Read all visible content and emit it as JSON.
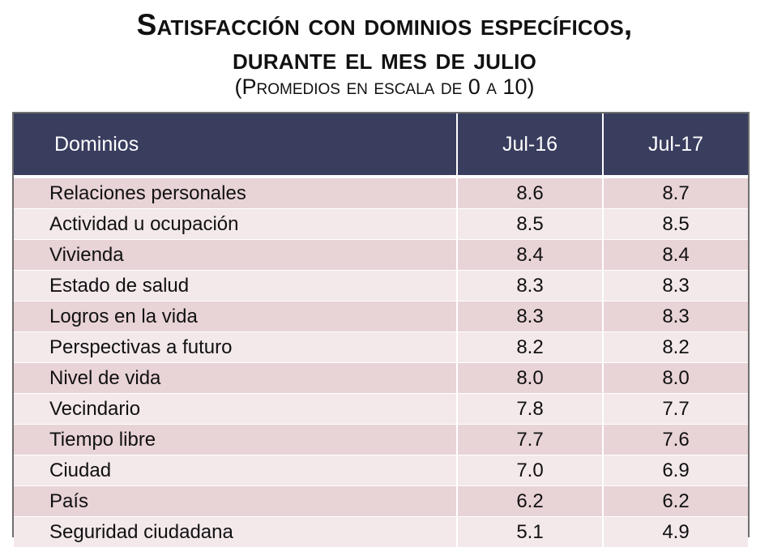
{
  "title": {
    "line1": "Satisfacción con dominios específicos,",
    "line2": "durante el mes de julio",
    "subtitle": "(Promedios en escala de 0 a 10)"
  },
  "table": {
    "headers": [
      "Dominios",
      "Jul-16",
      "Jul-17"
    ],
    "rows": [
      [
        "Relaciones personales",
        "8.6",
        "8.7"
      ],
      [
        "Actividad u ocupación",
        "8.5",
        "8.5"
      ],
      [
        "Vivienda",
        "8.4",
        "8.4"
      ],
      [
        "Estado de salud",
        "8.3",
        "8.3"
      ],
      [
        "Logros en la vida",
        "8.3",
        "8.3"
      ],
      [
        "Perspectivas a futuro",
        "8.2",
        "8.2"
      ],
      [
        "Nivel de vida",
        "8.0",
        "8.0"
      ],
      [
        "Vecindario",
        "7.8",
        "7.7"
      ],
      [
        "Tiempo libre",
        "7.7",
        "7.6"
      ],
      [
        "Ciudad",
        "7.0",
        "6.9"
      ],
      [
        "País",
        "6.2",
        "6.2"
      ],
      [
        "Seguridad ciudadana",
        "5.1",
        "4.9"
      ]
    ]
  },
  "colors": {
    "header_bg": "#393d5e",
    "row_odd": "#e8d3d6",
    "row_even": "#f3e8ea",
    "frame": "#6f6f6f"
  }
}
